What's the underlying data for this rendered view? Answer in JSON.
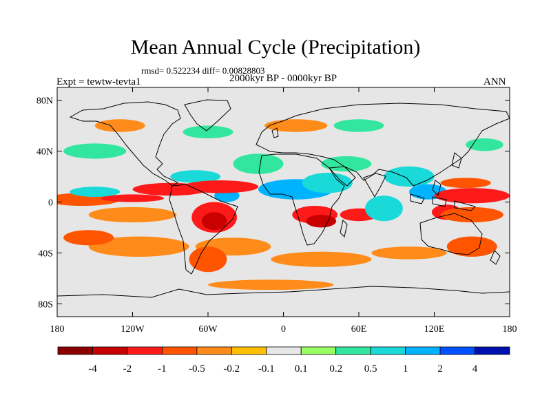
{
  "title": "Mean Annual Cycle (Precipitation)",
  "stats": "rmsd= 0.522234  diff= 0.00828803",
  "period": "2000kyr BP - 0000kyr BP",
  "experiment": "Expt = tewtw-tevta1",
  "season": "ANN",
  "map": {
    "projection": "cylindrical equidistant",
    "lon_range": [
      -180,
      180
    ],
    "lat_range": [
      -90,
      90
    ],
    "lat_ticks": [
      {
        "value": 80,
        "label": "80N"
      },
      {
        "value": 40,
        "label": "40N"
      },
      {
        "value": 0,
        "label": "0"
      },
      {
        "value": -40,
        "label": "40S"
      },
      {
        "value": -80,
        "label": "80S"
      }
    ],
    "lon_ticks": [
      {
        "value": -180,
        "label": "180"
      },
      {
        "value": -120,
        "label": "120W"
      },
      {
        "value": -60,
        "label": "60W"
      },
      {
        "value": 0,
        "label": "0"
      },
      {
        "value": 60,
        "label": "60E"
      },
      {
        "value": 120,
        "label": "120E"
      },
      {
        "value": 180,
        "label": "180"
      }
    ]
  },
  "colorbar": {
    "colors": [
      "#8c0000",
      "#c80000",
      "#ff1a1a",
      "#ff5500",
      "#ff8c1a",
      "#ffbf00",
      "#e6e6e6",
      "#99ff66",
      "#33e6a0",
      "#1ad9d9",
      "#00b3ff",
      "#0050ff",
      "#0010b0"
    ],
    "labels": [
      "-4",
      "-2",
      "-1",
      "-0.5",
      "-0.2",
      "-0.1",
      "0.1",
      "0.2",
      "0.5",
      "1",
      "2",
      "4"
    ]
  },
  "anomaly_blobs": [
    {
      "lon": -160,
      "lat": 2,
      "rlon": 30,
      "rlat": 5,
      "level": -0.5
    },
    {
      "lon": -120,
      "lat": 3,
      "rlon": 25,
      "rlat": 3,
      "level": -1
    },
    {
      "lon": -150,
      "lat": 8,
      "rlon": 20,
      "rlat": 4,
      "level": 0.5
    },
    {
      "lon": -120,
      "lat": -10,
      "rlon": 35,
      "rlat": 6,
      "level": -0.2
    },
    {
      "lon": -115,
      "lat": -35,
      "rlon": 40,
      "rlat": 8,
      "level": -0.2
    },
    {
      "lon": -155,
      "lat": -28,
      "rlon": 20,
      "rlat": 6,
      "level": -0.5
    },
    {
      "lon": -90,
      "lat": 10,
      "rlon": 30,
      "rlat": 5,
      "level": -1
    },
    {
      "lon": -70,
      "lat": 20,
      "rlon": 20,
      "rlat": 5,
      "level": 0.5
    },
    {
      "lon": -55,
      "lat": -12,
      "rlon": 18,
      "rlat": 12,
      "level": -1
    },
    {
      "lon": -55,
      "lat": -15,
      "rlon": 10,
      "rlat": 7,
      "level": -2
    },
    {
      "lon": -45,
      "lat": 5,
      "rlon": 10,
      "rlat": 5,
      "level": 1
    },
    {
      "lon": -50,
      "lat": 12,
      "rlon": 30,
      "rlat": 5,
      "level": -1
    },
    {
      "lon": -20,
      "lat": 30,
      "rlon": 20,
      "rlat": 8,
      "level": 0.2
    },
    {
      "lon": -40,
      "lat": -35,
      "rlon": 30,
      "rlat": 7,
      "level": -0.2
    },
    {
      "lon": -60,
      "lat": -45,
      "rlon": 15,
      "rlat": 10,
      "level": -0.5
    },
    {
      "lon": 10,
      "lat": 10,
      "rlon": 30,
      "rlat": 8,
      "level": 1
    },
    {
      "lon": 35,
      "lat": 15,
      "rlon": 20,
      "rlat": 8,
      "level": 0.5
    },
    {
      "lon": 25,
      "lat": -10,
      "rlon": 18,
      "rlat": 7,
      "level": -1
    },
    {
      "lon": 30,
      "lat": -15,
      "rlon": 12,
      "rlat": 5,
      "level": -2
    },
    {
      "lon": 60,
      "lat": -10,
      "rlon": 15,
      "rlat": 5,
      "level": -1
    },
    {
      "lon": 50,
      "lat": 30,
      "rlon": 20,
      "rlat": 6,
      "level": 0.2
    },
    {
      "lon": 80,
      "lat": -5,
      "rlon": 15,
      "rlat": 10,
      "level": 0.5
    },
    {
      "lon": 100,
      "lat": 20,
      "rlon": 20,
      "rlat": 8,
      "level": 0.5
    },
    {
      "lon": 115,
      "lat": 8,
      "rlon": 15,
      "rlat": 6,
      "level": 1
    },
    {
      "lon": 150,
      "lat": 5,
      "rlon": 30,
      "rlat": 6,
      "level": -1
    },
    {
      "lon": 145,
      "lat": 15,
      "rlon": 20,
      "rlat": 4,
      "level": -0.5
    },
    {
      "lon": 130,
      "lat": -8,
      "rlon": 12,
      "rlat": 6,
      "level": -1
    },
    {
      "lon": 150,
      "lat": -10,
      "rlon": 25,
      "rlat": 6,
      "level": -0.5
    },
    {
      "lon": 150,
      "lat": -35,
      "rlon": 20,
      "rlat": 8,
      "level": -0.5
    },
    {
      "lon": 100,
      "lat": -40,
      "rlon": 30,
      "rlat": 5,
      "level": -0.2
    },
    {
      "lon": 30,
      "lat": -45,
      "rlon": 40,
      "rlat": 6,
      "level": -0.2
    },
    {
      "lon": -150,
      "lat": 40,
      "rlon": 25,
      "rlat": 6,
      "level": 0.2
    },
    {
      "lon": -130,
      "lat": 60,
      "rlon": 20,
      "rlat": 5,
      "level": -0.2
    },
    {
      "lon": -60,
      "lat": 55,
      "rlon": 20,
      "rlat": 5,
      "level": 0.2
    },
    {
      "lon": 10,
      "lat": 60,
      "rlon": 25,
      "rlat": 5,
      "level": -0.2
    },
    {
      "lon": 60,
      "lat": 60,
      "rlon": 20,
      "rlat": 5,
      "level": 0.2
    },
    {
      "lon": 160,
      "lat": 45,
      "rlon": 15,
      "rlat": 5,
      "level": 0.2
    },
    {
      "lon": -10,
      "lat": -65,
      "rlon": 50,
      "rlat": 4,
      "level": -0.2
    }
  ]
}
